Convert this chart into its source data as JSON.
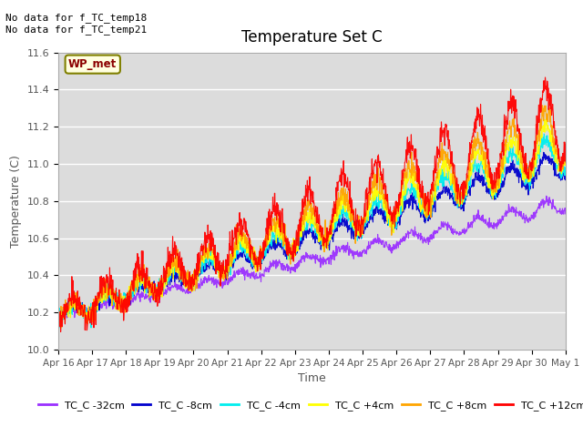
{
  "title": "Temperature Set C",
  "xlabel": "Time",
  "ylabel": "Temperature (C)",
  "ylim": [
    10.0,
    11.6
  ],
  "yticks": [
    10.0,
    10.2,
    10.4,
    10.6,
    10.8,
    11.0,
    11.2,
    11.4,
    11.6
  ],
  "xtick_labels": [
    "Apr 16",
    "Apr 17",
    "Apr 18",
    "Apr 19",
    "Apr 20",
    "Apr 21",
    "Apr 22",
    "Apr 23",
    "Apr 24",
    "Apr 25",
    "Apr 26",
    "Apr 27",
    "Apr 28",
    "Apr 29",
    "Apr 30",
    "May 1"
  ],
  "annotation_top": "No data for f_TC_temp18\nNo data for f_TC_temp21",
  "wp_met_label": "WP_met",
  "legend_labels": [
    "TC_C -32cm",
    "TC_C -8cm",
    "TC_C -4cm",
    "TC_C +4cm",
    "TC_C +8cm",
    "TC_C +12cm"
  ],
  "legend_colors": [
    "#9b30ff",
    "#0000cd",
    "#00eeee",
    "#ffff00",
    "#ffa500",
    "#ff0000"
  ],
  "bg_color": "#dcdcdc",
  "grid_color": "#ffffff",
  "n_days": 15,
  "n_points": 1500,
  "figsize": [
    6.4,
    4.8
  ],
  "dpi": 100
}
